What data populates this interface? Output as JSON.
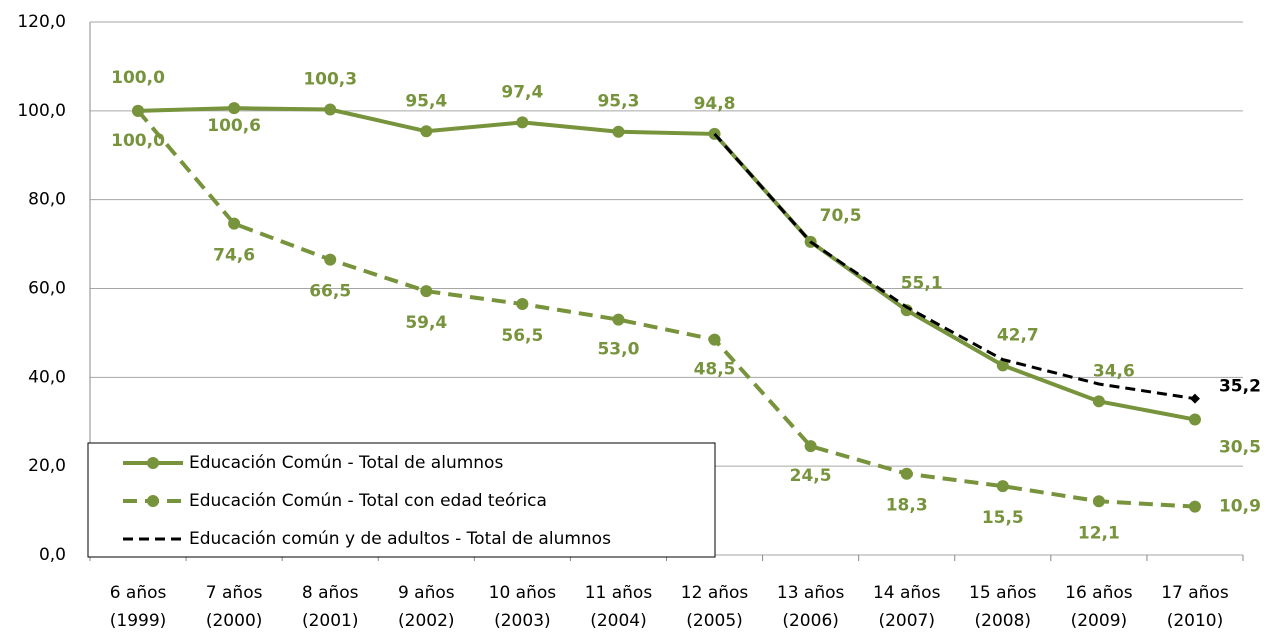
{
  "chart_data": {
    "type": "line",
    "categories": [
      [
        "6 años",
        "(1999)"
      ],
      [
        "7 años",
        "(2000)"
      ],
      [
        "8 años",
        "(2001)"
      ],
      [
        "9 años",
        "(2002)"
      ],
      [
        "10 años",
        "(2003)"
      ],
      [
        "11 años",
        "(2004)"
      ],
      [
        "12 años",
        "(2005)"
      ],
      [
        "13 años",
        "(2006)"
      ],
      [
        "14 años",
        "(2007)"
      ],
      [
        "15 años",
        "(2008)"
      ],
      [
        "16 años",
        "(2009)"
      ],
      [
        "17 años",
        "(2010)"
      ]
    ],
    "series": [
      {
        "name": "Educación Común - Total de alumnos",
        "color": "#77933c",
        "dash": "solid",
        "values": [
          100.0,
          100.6,
          100.3,
          95.4,
          97.4,
          95.3,
          94.8,
          70.5,
          55.1,
          42.7,
          34.6,
          30.5
        ],
        "value_labels": [
          "100,0",
          "100,6",
          "100,3",
          "95,4",
          "97,4",
          "95,3",
          "94,8",
          "70,5",
          "55,1",
          "42,7",
          "34,6",
          "30,5"
        ]
      },
      {
        "name": "Educación Común - Total con edad teórica",
        "color": "#77933c",
        "dash": "dashed",
        "values": [
          100.0,
          74.6,
          66.5,
          59.4,
          56.5,
          53.0,
          48.5,
          24.5,
          18.3,
          15.5,
          12.1,
          10.9
        ],
        "value_labels": [
          "100,0",
          "74,6",
          "66,5",
          "59,4",
          "56,5",
          "53,0",
          "48,5",
          "24,5",
          "18,3",
          "15,5",
          "12,1",
          "10,9"
        ]
      },
      {
        "name": "Educación común y de adultos - Total de alumnos",
        "color": "#000000",
        "dash": "dashed",
        "values": [
          null,
          null,
          null,
          null,
          null,
          null,
          94.8,
          70.5,
          55.8,
          44.0,
          38.5,
          35.2
        ],
        "value_labels": [
          null,
          null,
          null,
          null,
          null,
          null,
          null,
          null,
          null,
          null,
          null,
          "35,2"
        ]
      }
    ],
    "ylim": [
      0,
      120
    ],
    "yticks": [
      {
        "value": 0,
        "label": "0,0"
      },
      {
        "value": 20,
        "label": "20,0"
      },
      {
        "value": 40,
        "label": "40,0"
      },
      {
        "value": 60,
        "label": "60,0"
      },
      {
        "value": 80,
        "label": "80,0"
      },
      {
        "value": 100,
        "label": "100,0"
      },
      {
        "value": 120,
        "label": "120,0"
      }
    ],
    "grid": true
  }
}
